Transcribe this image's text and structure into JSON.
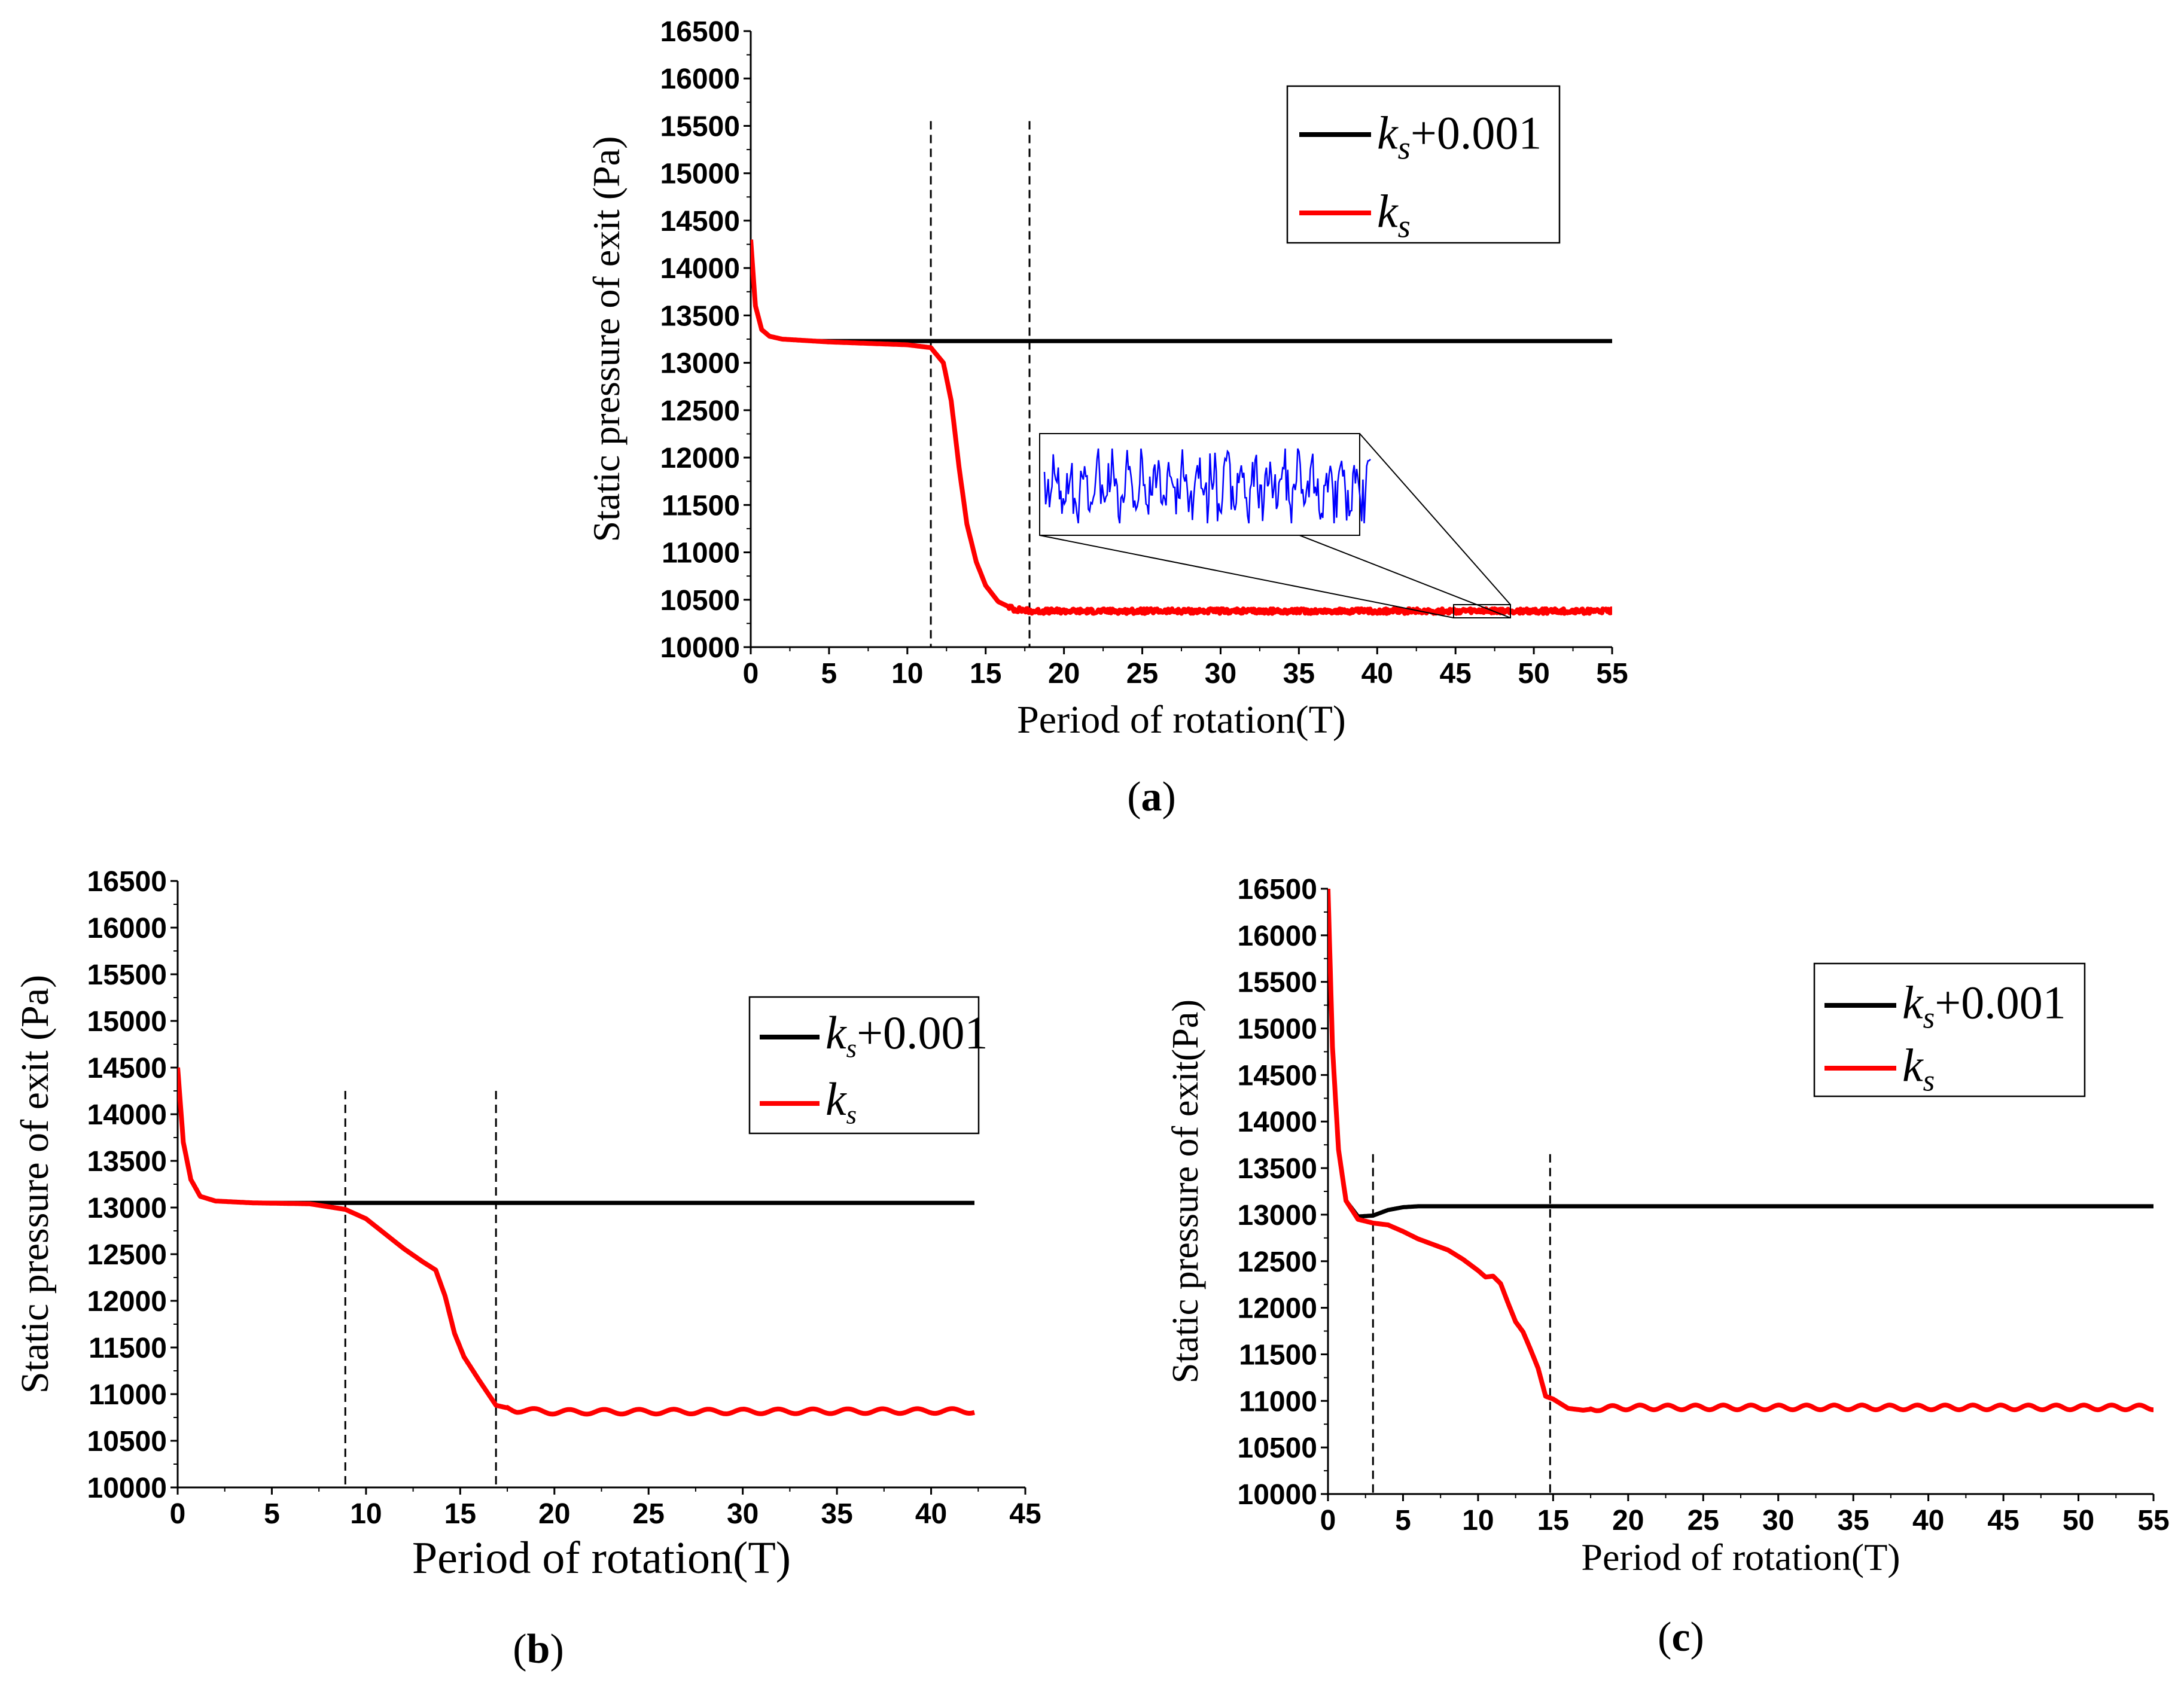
{
  "chart_data": [
    {
      "type": "line",
      "panel_label": "a",
      "xlabel": "Period of rotation(T)",
      "ylabel": "Static pressure of exit (Pa)",
      "xlim": [
        0,
        55
      ],
      "ylim": [
        10000,
        16500
      ],
      "xticks": [
        0,
        5,
        10,
        15,
        20,
        25,
        30,
        35,
        40,
        45,
        50,
        55
      ],
      "yticks": [
        10000,
        10500,
        11000,
        11500,
        12000,
        12500,
        13000,
        13500,
        14000,
        14500,
        15000,
        15500,
        16000,
        16500
      ],
      "vlines": [
        11.5,
        17.8
      ],
      "legend": {
        "position": "top-right",
        "entries": [
          {
            "italic": "k",
            "sub": "s",
            "suffix": "+0.001",
            "color": "#000000"
          },
          {
            "italic": "k",
            "sub": "s",
            "suffix": "",
            "color": "#ff0000"
          }
        ]
      },
      "series": [
        {
          "name": "ks+0.001",
          "color": "#000000",
          "x": [
            0,
            0.3,
            0.7,
            1.2,
            2,
            4,
            55
          ],
          "y": [
            14200,
            13600,
            13350,
            13280,
            13250,
            13230,
            13230
          ]
        },
        {
          "name": "ks",
          "color": "#ff0000",
          "x": [
            0,
            0.3,
            0.7,
            1.2,
            2,
            5,
            10,
            11.5,
            12.3,
            12.8,
            13.3,
            13.8,
            14.4,
            15.0,
            15.8,
            16.8,
            18,
            55
          ],
          "y": [
            14300,
            13600,
            13350,
            13280,
            13250,
            13220,
            13190,
            13160,
            13000,
            12600,
            11900,
            11300,
            10900,
            10650,
            10480,
            10400,
            10380,
            10380
          ],
          "noise": 25
        }
      ],
      "inset": {
        "x_range": [
          45,
          48.5
        ],
        "y_range": [
          10330,
          10420
        ],
        "color": "#0000ff"
      }
    },
    {
      "type": "line",
      "panel_label": "b",
      "xlabel": "Period of rotation(T)",
      "ylabel": "Static pressure of exit (Pa)",
      "xlim": [
        0,
        45
      ],
      "ylim": [
        10000,
        16500
      ],
      "xticks": [
        0,
        5,
        10,
        15,
        20,
        25,
        30,
        35,
        40,
        45
      ],
      "yticks": [
        10000,
        10500,
        11000,
        11500,
        12000,
        12500,
        13000,
        13500,
        14000,
        14500,
        15000,
        15500,
        16000,
        16500
      ],
      "vlines": [
        8.9,
        16.9
      ],
      "legend": {
        "position": "right",
        "entries": [
          {
            "italic": "k",
            "sub": "s",
            "suffix": "+0.001",
            "color": "#000000"
          },
          {
            "italic": "k",
            "sub": "s",
            "suffix": "",
            "color": "#ff0000"
          }
        ]
      },
      "series": [
        {
          "name": "ks+0.001",
          "color": "#000000",
          "x": [
            0,
            0.3,
            0.7,
            1.2,
            2,
            4,
            8,
            42.3
          ],
          "y": [
            14500,
            13700,
            13300,
            13120,
            13070,
            13050,
            13050,
            13050
          ]
        },
        {
          "name": "ks",
          "color": "#ff0000",
          "x": [
            0,
            0.3,
            0.7,
            1.2,
            2,
            4,
            7,
            8.9,
            10,
            11,
            12,
            13,
            13.7,
            14.2,
            14.7,
            15.2,
            16,
            16.9,
            18,
            20,
            42.3
          ],
          "y": [
            14500,
            13700,
            13300,
            13120,
            13070,
            13050,
            13040,
            12980,
            12880,
            12720,
            12560,
            12420,
            12330,
            12050,
            11650,
            11400,
            11150,
            10880,
            10830,
            10810,
            10820
          ],
          "wave": 25
        }
      ]
    },
    {
      "type": "line",
      "panel_label": "c",
      "xlabel": "Period of rotation(T)",
      "ylabel": "Static pressure of exit(Pa)",
      "xlim": [
        0,
        55
      ],
      "ylim": [
        10000,
        16500
      ],
      "xticks": [
        0,
        5,
        10,
        15,
        20,
        25,
        30,
        35,
        40,
        45,
        50,
        55
      ],
      "yticks": [
        10000,
        10500,
        11000,
        11500,
        12000,
        12500,
        13000,
        13500,
        14000,
        14500,
        15000,
        15500,
        16000,
        16500
      ],
      "vlines": [
        3.0,
        14.8
      ],
      "legend": {
        "position": "top-right",
        "entries": [
          {
            "italic": "k",
            "sub": "s",
            "suffix": "+0.001",
            "color": "#000000"
          },
          {
            "italic": "k",
            "sub": "s",
            "suffix": "",
            "color": "#ff0000"
          }
        ]
      },
      "series": [
        {
          "name": "ks+0.001",
          "color": "#000000",
          "x": [
            0,
            0.3,
            0.7,
            1.2,
            2,
            3,
            4,
            5,
            6,
            55
          ],
          "y": [
            16500,
            14800,
            13700,
            13150,
            12980,
            12990,
            13050,
            13080,
            13090,
            13090
          ]
        },
        {
          "name": "ks",
          "color": "#ff0000",
          "x": [
            0,
            0.3,
            0.7,
            1.2,
            2,
            3,
            4,
            5,
            6,
            7,
            8,
            9,
            10,
            10.5,
            11,
            11.5,
            12,
            12.5,
            13,
            13.5,
            14,
            14.5,
            15,
            16,
            17,
            18,
            20,
            55
          ],
          "y": [
            16500,
            14800,
            13700,
            13150,
            12950,
            12910,
            12890,
            12820,
            12740,
            12680,
            12620,
            12520,
            12400,
            12330,
            12340,
            12260,
            12050,
            11850,
            11740,
            11550,
            11350,
            11050,
            11020,
            10920,
            10900,
            10920,
            10930,
            10930
          ],
          "wave": 25
        }
      ]
    }
  ]
}
